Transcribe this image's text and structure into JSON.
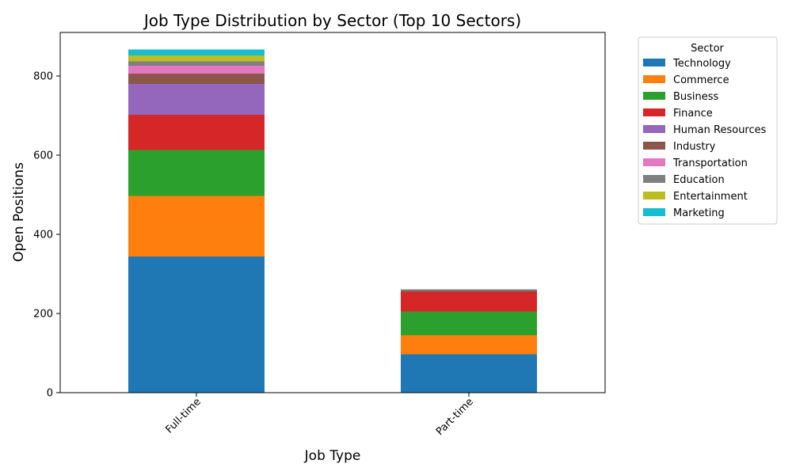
{
  "chart_data": {
    "type": "bar",
    "stacked": true,
    "title": "Job Type Distribution by Sector (Top 10 Sectors)",
    "xlabel": "Job Type",
    "ylabel": "Open Positions",
    "categories": [
      "Full-time",
      "Part-time"
    ],
    "ylim": [
      0,
      910
    ],
    "yticks": [
      0,
      200,
      400,
      600,
      800
    ],
    "grid": false,
    "legend": {
      "title": "Sector",
      "placement": "outside-right-top"
    },
    "series": [
      {
        "name": "Technology",
        "color": "#1f77b4",
        "values": [
          344,
          97
        ]
      },
      {
        "name": "Commerce",
        "color": "#ff7f0e",
        "values": [
          153,
          48
        ]
      },
      {
        "name": "Business",
        "color": "#2ca02c",
        "values": [
          116,
          60
        ]
      },
      {
        "name": "Finance",
        "color": "#d62728",
        "values": [
          89,
          50
        ]
      },
      {
        "name": "Human Resources",
        "color": "#9467bd",
        "values": [
          78,
          0
        ]
      },
      {
        "name": "Industry",
        "color": "#8c564b",
        "values": [
          26,
          2
        ]
      },
      {
        "name": "Transportation",
        "color": "#e377c2",
        "values": [
          20,
          0
        ]
      },
      {
        "name": "Education",
        "color": "#7f7f7f",
        "values": [
          11,
          4
        ]
      },
      {
        "name": "Entertainment",
        "color": "#bcbd22",
        "values": [
          15,
          0
        ]
      },
      {
        "name": "Marketing",
        "color": "#17becf",
        "values": [
          15,
          0
        ]
      }
    ]
  }
}
